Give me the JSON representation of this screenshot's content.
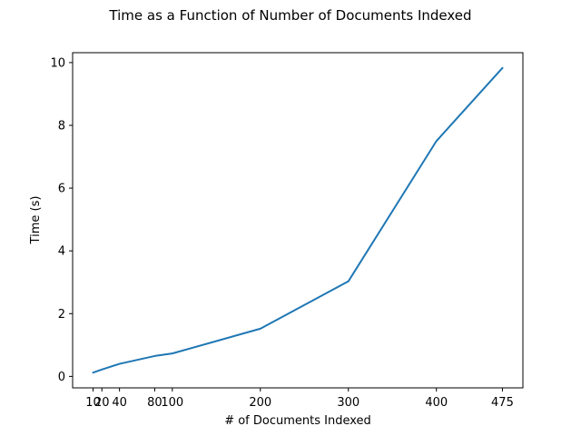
{
  "chart_data": {
    "type": "line",
    "title": "Time as a Function of Number of Documents Indexed",
    "xlabel": "# of Documents Indexed",
    "ylabel": "Time (s)",
    "x": [
      10,
      20,
      40,
      80,
      100,
      200,
      300,
      400,
      475
    ],
    "series": [
      {
        "values": [
          0.12,
          0.22,
          0.4,
          0.65,
          0.73,
          1.52,
          3.03,
          7.5,
          9.83
        ],
        "color": "#1f77b4"
      }
    ],
    "xticks": [
      10,
      20,
      40,
      80,
      100,
      200,
      300,
      400,
      475
    ],
    "xtick_labels": [
      "10",
      "20",
      "40",
      "80",
      "100",
      "200",
      "300",
      "400",
      "475"
    ],
    "yticks": [
      0,
      2,
      4,
      6,
      8,
      10
    ],
    "ytick_labels": [
      "0",
      "2",
      "4",
      "6",
      "8",
      "10"
    ],
    "xlim": [
      -13.25,
      498.25
    ],
    "ylim": [
      -0.3655,
      10.3155
    ],
    "grid": false,
    "legend": "none"
  }
}
